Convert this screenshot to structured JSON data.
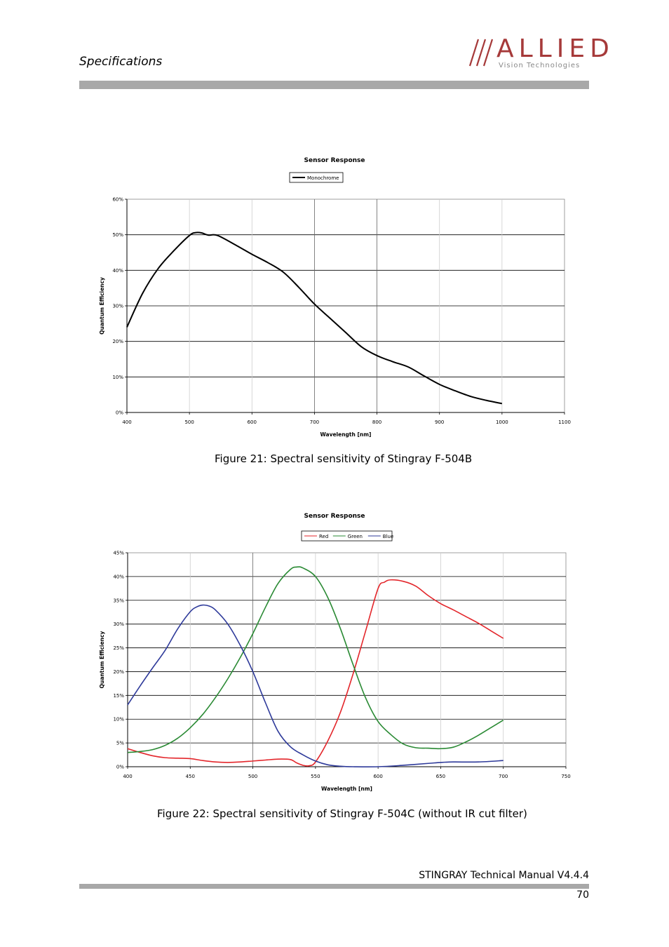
{
  "header": {
    "section_title": "Specifications",
    "logo_text": "ALLIED",
    "logo_subtitle": "Vision Technologies",
    "logo_color": "#a63a3a"
  },
  "figures": [
    {
      "caption": "Figure 21: Spectral sensitivity of Stingray F-504B"
    },
    {
      "caption": "Figure 22: Spectral sensitivity of Stingray F-504C (without IR cut filter)"
    }
  ],
  "footer": {
    "manual_title": "STINGRAY Technical Manual V4.4.4",
    "page_number": "70"
  },
  "chart_data": [
    {
      "type": "line",
      "title": "Sensor Response",
      "xlabel": "Wavelength [nm]",
      "ylabel": "Quantum Efficiency",
      "xlim": [
        400,
        1100
      ],
      "ylim": [
        0,
        60
      ],
      "xticks": [
        400,
        500,
        600,
        700,
        800,
        900,
        1000,
        1100
      ],
      "yticks": [
        0,
        10,
        20,
        30,
        40,
        50,
        60
      ],
      "ytick_suffix": "%",
      "legend": "top-center",
      "series": [
        {
          "name": "Monochrome",
          "color": "#000000",
          "x": [
            400,
            425,
            450,
            475,
            500,
            510,
            520,
            530,
            545,
            575,
            600,
            625,
            650,
            675,
            700,
            725,
            750,
            775,
            800,
            825,
            850,
            875,
            900,
            925,
            950,
            975,
            1000
          ],
          "y": [
            24,
            33.5,
            40.5,
            45.5,
            49.8,
            50.6,
            50.5,
            49.9,
            49.8,
            47,
            44.5,
            42.2,
            39.5,
            35.2,
            30.5,
            26.5,
            22.5,
            18.5,
            16,
            14.3,
            12.8,
            10.3,
            7.9,
            6.1,
            4.5,
            3.4,
            2.5
          ]
        }
      ]
    },
    {
      "type": "line",
      "title": "Sensor Response",
      "xlabel": "Wavelength [nm]",
      "ylabel": "Quantum Efficiency",
      "xlim": [
        400,
        750
      ],
      "ylim": [
        0,
        45
      ],
      "xticks": [
        400,
        450,
        500,
        550,
        600,
        650,
        700,
        750
      ],
      "yticks": [
        0,
        5,
        10,
        15,
        20,
        25,
        30,
        35,
        40,
        45
      ],
      "ytick_suffix": "%",
      "legend": "top-center",
      "series": [
        {
          "name": "Red",
          "color": "#e3262b",
          "x": [
            400,
            410,
            420,
            430,
            440,
            450,
            460,
            470,
            480,
            490,
            500,
            510,
            520,
            530,
            535,
            540,
            545,
            550,
            560,
            570,
            580,
            590,
            600,
            605,
            610,
            620,
            630,
            640,
            650,
            660,
            670,
            680,
            690,
            700
          ],
          "y": [
            3.8,
            3.0,
            2.3,
            1.9,
            1.8,
            1.7,
            1.3,
            1.0,
            0.9,
            1.0,
            1.2,
            1.4,
            1.6,
            1.5,
            0.8,
            0.3,
            0.2,
            1.0,
            5.5,
            11.5,
            19.5,
            28.5,
            37.5,
            38.8,
            39.3,
            39.0,
            38.0,
            36.0,
            34.3,
            33.0,
            31.6,
            30.2,
            28.6,
            27.0
          ]
        },
        {
          "name": "Green",
          "color": "#2a8a34",
          "x": [
            400,
            410,
            420,
            430,
            440,
            450,
            460,
            470,
            480,
            490,
            500,
            510,
            520,
            530,
            535,
            540,
            550,
            560,
            570,
            580,
            590,
            600,
            610,
            620,
            630,
            640,
            650,
            660,
            670,
            680,
            690,
            700
          ],
          "y": [
            3.0,
            3.2,
            3.6,
            4.5,
            6.0,
            8.2,
            11.0,
            14.5,
            18.5,
            23.0,
            28.0,
            33.5,
            38.5,
            41.5,
            42.0,
            41.8,
            40.0,
            35.5,
            29.0,
            21.5,
            14.5,
            9.5,
            6.8,
            4.8,
            4.0,
            3.9,
            3.8,
            4.1,
            5.2,
            6.6,
            8.2,
            9.8
          ]
        },
        {
          "name": "Blue",
          "color": "#2e3a9a",
          "x": [
            400,
            410,
            420,
            430,
            440,
            450,
            455,
            460,
            465,
            470,
            480,
            490,
            500,
            510,
            520,
            530,
            540,
            550,
            560,
            570,
            580,
            600,
            620,
            640,
            650,
            660,
            680,
            700
          ],
          "y": [
            13.0,
            17.0,
            20.8,
            24.5,
            29.0,
            32.6,
            33.6,
            34.0,
            33.8,
            33.0,
            30.0,
            25.5,
            20.0,
            13.5,
            7.5,
            4.2,
            2.5,
            1.2,
            0.4,
            0.1,
            0.0,
            0.0,
            0.3,
            0.7,
            0.9,
            1.0,
            1.0,
            1.3
          ]
        }
      ]
    }
  ]
}
